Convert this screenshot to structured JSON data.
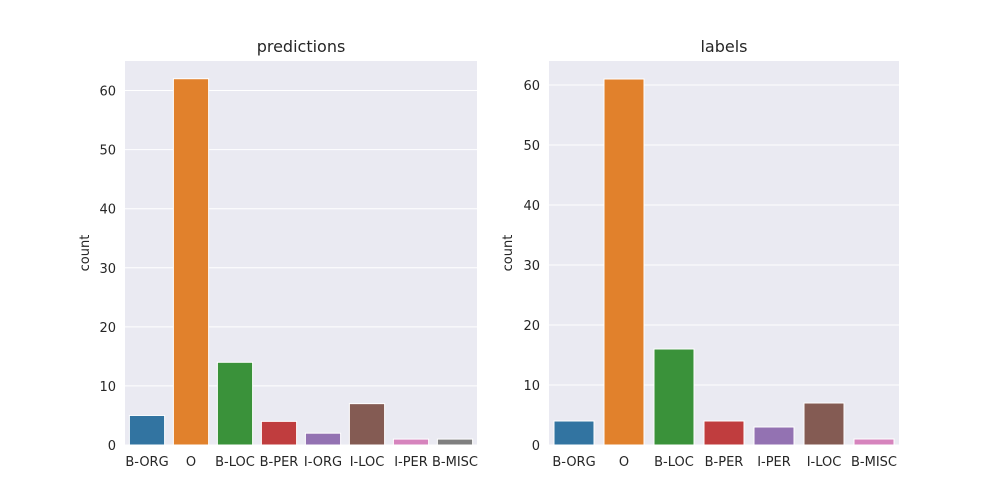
{
  "chart_data": [
    {
      "type": "bar",
      "title": "predictions",
      "xlabel": "",
      "ylabel": "count",
      "ylim": [
        0,
        65
      ],
      "yticks": [
        0,
        10,
        20,
        30,
        40,
        50,
        60
      ],
      "grid": true,
      "categories": [
        "B-ORG",
        "O",
        "B-LOC",
        "B-PER",
        "I-ORG",
        "I-LOC",
        "I-PER",
        "B-MISC"
      ],
      "values": [
        5,
        62,
        14,
        4,
        2,
        7,
        1,
        1
      ],
      "colors": [
        "#3274a1",
        "#e1812c",
        "#3a923a",
        "#c03d3e",
        "#9372b2",
        "#845b53",
        "#d684bd",
        "#7f7f7f"
      ]
    },
    {
      "type": "bar",
      "title": "labels",
      "xlabel": "",
      "ylabel": "count",
      "ylim": [
        0,
        64
      ],
      "yticks": [
        0,
        10,
        20,
        30,
        40,
        50,
        60
      ],
      "grid": true,
      "categories": [
        "B-ORG",
        "O",
        "B-LOC",
        "B-PER",
        "I-PER",
        "I-LOC",
        "B-MISC"
      ],
      "values": [
        4,
        61,
        16,
        4,
        3,
        7,
        1
      ],
      "colors": [
        "#3274a1",
        "#e1812c",
        "#3a923a",
        "#c03d3e",
        "#9372b2",
        "#845b53",
        "#d684bd"
      ]
    }
  ],
  "style": {
    "plot_background": "#eaeaf2",
    "grid_color": "#ffffff",
    "text_color": "#262626"
  }
}
